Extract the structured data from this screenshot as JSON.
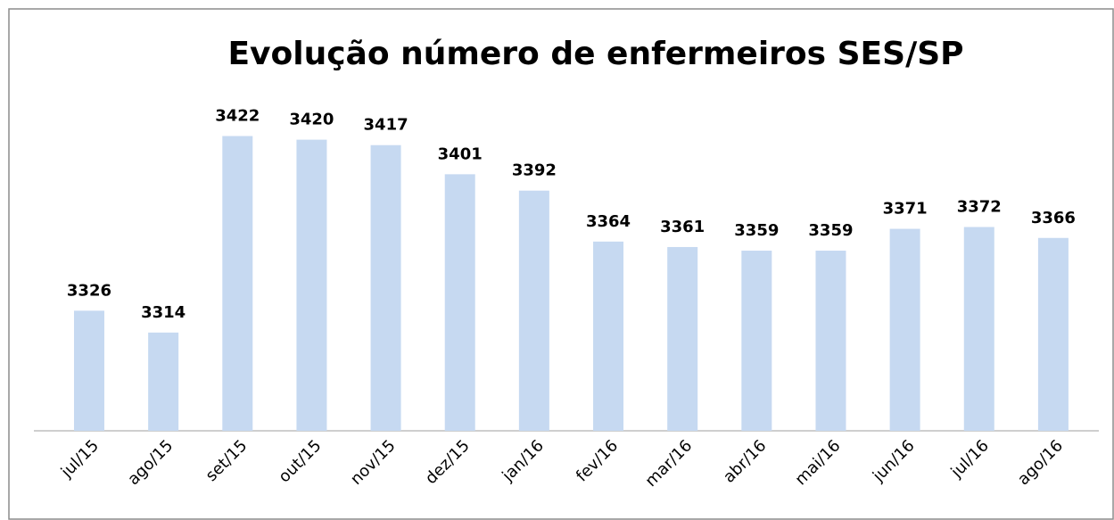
{
  "chart_data": {
    "type": "bar",
    "title": "Evolução número de enfermeiros SES/SP",
    "categories": [
      "jul/15",
      "ago/15",
      "set/15",
      "out/15",
      "nov/15",
      "dez/15",
      "jan/16",
      "fev/16",
      "mar/16",
      "abr/16",
      "mai/16",
      "jun/16",
      "jul/16",
      "ago/16"
    ],
    "values": [
      3326,
      3314,
      3422,
      3420,
      3417,
      3401,
      3392,
      3364,
      3361,
      3359,
      3359,
      3371,
      3372,
      3366
    ],
    "color": "#c6d9f1",
    "ylim": [
      3260,
      3440
    ]
  }
}
